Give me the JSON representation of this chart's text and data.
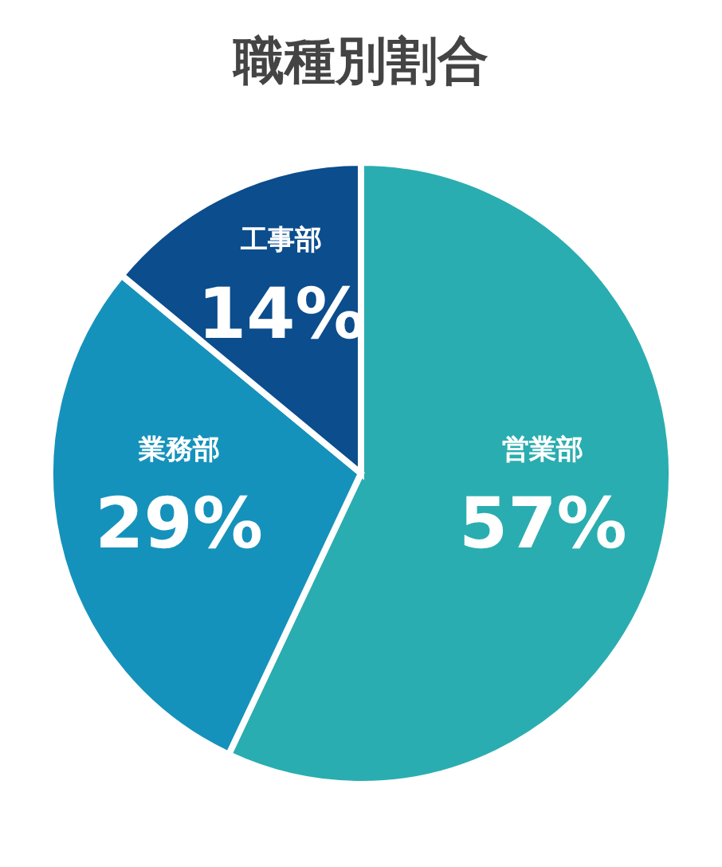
{
  "chart_data": {
    "type": "pie",
    "title": "職種別割合",
    "categories": [
      "営業部",
      "業務部",
      "工事部"
    ],
    "values": [
      57,
      29,
      14
    ],
    "value_labels": [
      "57%",
      "29%",
      "14%"
    ],
    "colors": [
      "#2aadb0",
      "#1592bb",
      "#0b4d8d"
    ],
    "legend": false
  }
}
